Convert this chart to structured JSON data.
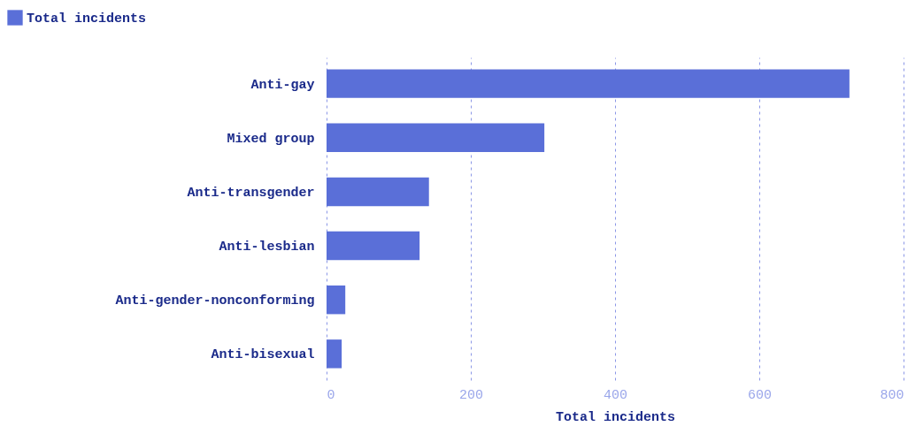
{
  "chart_data": {
    "type": "bar",
    "orientation": "horizontal",
    "categories": [
      "Anti-gay",
      "Mixed group",
      "Anti-transgender",
      "Anti-lesbian",
      "Anti-gender-nonconforming",
      "Anti-bisexual"
    ],
    "series": [
      {
        "name": "Total incidents",
        "color": "#5a6fd8",
        "values": [
          725,
          302,
          142,
          129,
          26,
          21
        ]
      }
    ],
    "xlabel": "Total incidents",
    "xlim": [
      0,
      800
    ],
    "xticks": [
      0,
      200,
      400,
      600,
      800
    ],
    "grid": "x",
    "legend": "top left"
  }
}
